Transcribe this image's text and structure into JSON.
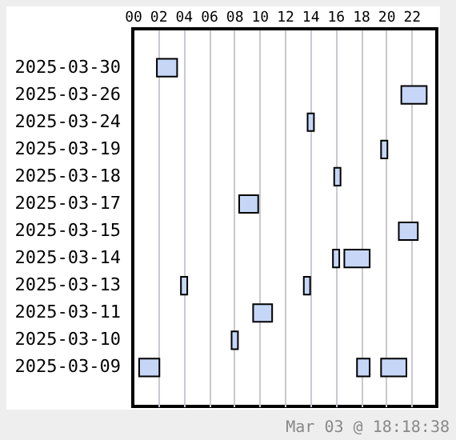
{
  "chart_data": {
    "type": "bar",
    "orientation": "horizontal",
    "categories": [
      null,
      "2025-03-30",
      "2025-03-26",
      "2025-03-24",
      "2025-03-19",
      "2025-03-18",
      "2025-03-17",
      "2025-03-15",
      "2025-03-14",
      "2025-03-13",
      "2025-03-11",
      "2025-03-10",
      "2025-03-09",
      null
    ],
    "series": [
      {
        "color": "#c6d6f7",
        "base": [
          null,
          1.9,
          21.2,
          13.8,
          19.6,
          15.9,
          8.4,
          21.0,
          15.8,
          3.8,
          9.5,
          7.8,
          0.5,
          null
        ],
        "values": [
          null,
          1.6,
          2.0,
          0.5,
          0.5,
          0.5,
          1.5,
          1.5,
          0.5,
          0.5,
          1.5,
          0.5,
          1.6,
          null
        ]
      },
      {
        "color": "#c6d6f7",
        "base": [
          null,
          null,
          null,
          null,
          null,
          null,
          null,
          null,
          16.7,
          13.5,
          null,
          null,
          17.7,
          null
        ],
        "values": [
          null,
          null,
          null,
          null,
          null,
          null,
          null,
          null,
          2.0,
          0.5,
          null,
          null,
          1.0,
          null
        ]
      },
      {
        "color": "#c6d6f7",
        "base": [
          null,
          null,
          null,
          null,
          null,
          null,
          null,
          null,
          null,
          null,
          null,
          null,
          19.6,
          null
        ],
        "values": [
          null,
          null,
          null,
          null,
          null,
          null,
          null,
          null,
          null,
          null,
          null,
          null,
          2.0,
          null
        ]
      }
    ],
    "xlim": [
      0,
      24
    ],
    "xticks": [
      {
        "value": 0,
        "label": "00"
      },
      {
        "value": 2,
        "label": "02"
      },
      {
        "value": 4,
        "label": "04"
      },
      {
        "value": 6,
        "label": "06"
      },
      {
        "value": 8,
        "label": "08"
      },
      {
        "value": 10,
        "label": "10"
      },
      {
        "value": 12,
        "label": "12"
      },
      {
        "value": 14,
        "label": "14"
      },
      {
        "value": 16,
        "label": "16"
      },
      {
        "value": 18,
        "label": "18"
      },
      {
        "value": 20,
        "label": "20"
      },
      {
        "value": 22,
        "label": "22"
      }
    ],
    "grid": "x",
    "annotations": [
      "Mar 03 @ 18:18:38"
    ]
  }
}
